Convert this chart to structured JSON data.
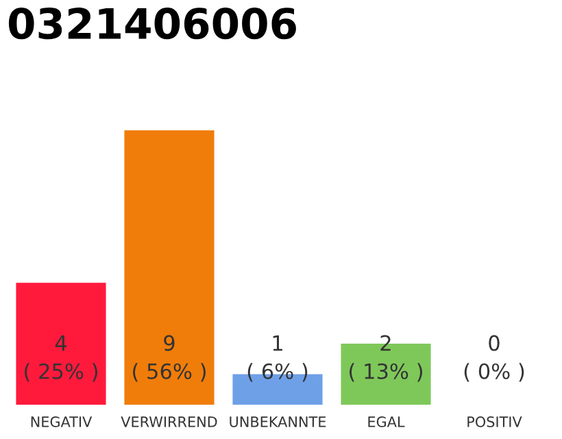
{
  "chart_data": {
    "type": "bar",
    "title": "0321406006",
    "categories": [
      "NEGATIV",
      "VERWIRREND",
      "UNBEKANNTE",
      "EGAL",
      "POSITIV"
    ],
    "values": [
      4,
      9,
      1,
      2,
      0
    ],
    "colors": [
      "#ff1a3c",
      "#f07d0a",
      "#6ea0e8",
      "#7ec85a",
      "#cccccc"
    ],
    "ylim": [
      0,
      9
    ],
    "grid": false,
    "legend": false,
    "value_labels": [
      "4\n( 25% )",
      "9\n( 56% )",
      "1\n( 6% )",
      "2\n( 13% )",
      "0\n( 0% )"
    ]
  }
}
